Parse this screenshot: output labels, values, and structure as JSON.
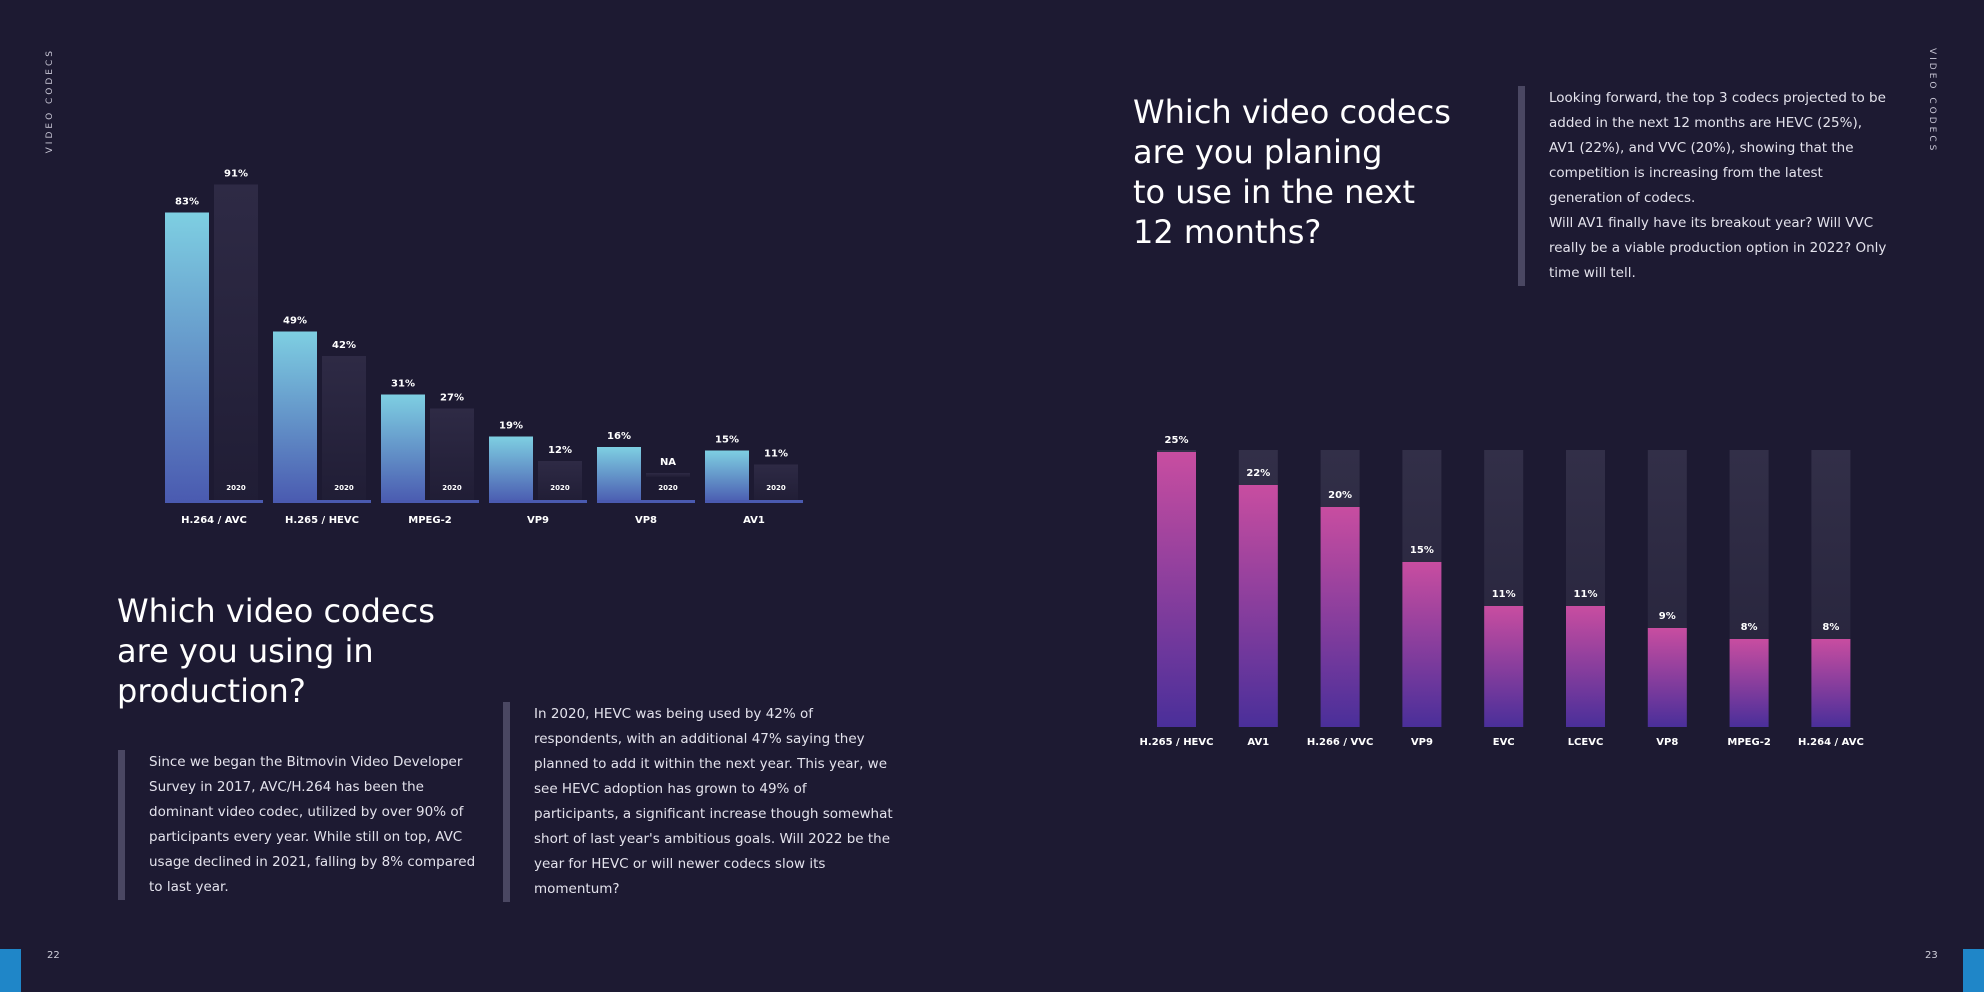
{
  "side_label": "VIDEO CODECS",
  "page_left": "22",
  "page_right": "23",
  "left": {
    "heading": "Which video codecs\nare you using in\nproduction?",
    "para1": "Since we began the Bitmovin Video Developer Survey in 2017, AVC/H.264 has been the dominant video codec, utilized by over 90% of participants every year. While still on top, AVC usage declined in 2021, falling by 8% compared to last year.",
    "para2": "In 2020, HEVC was being used by 42% of respondents, with an additional 47% saying they planned to add it within the next year. This year, we see HEVC adoption has grown to 49% of participants, a significant increase though somewhat short of last year's ambitious goals. Will 2022 be the year for HEVC or will newer codecs slow its momentum?"
  },
  "right": {
    "heading": "Which video codecs\nare you planing\nto use in the next\n12 months?",
    "para": "Looking forward, the top 3 codecs projected to be added in the next 12 months are HEVC (25%), AV1 (22%), and VVC (20%), showing that the competition is increasing from the latest generation of codecs.\nWill AV1 finally have its breakout year? Will VVC really be a viable production option in 2022? Only time will tell."
  },
  "colors": {
    "background": "#1d1a32",
    "current_top": "#7ecfe2",
    "current_bottom": "#4a5ab0",
    "prior_bar": "#2e2a45",
    "plan_top": "#c84da0",
    "plan_bottom": "#4a2f9a",
    "track": "#2e2b43",
    "accent": "#1f86c8"
  },
  "chart_data": [
    {
      "type": "bar",
      "categories": [
        "H.264 / AVC",
        "H.265 / HEVC",
        "MPEG-2",
        "VP9",
        "VP8",
        "AV1"
      ],
      "series": [
        {
          "values": [
            83,
            49,
            31,
            19,
            16,
            15
          ],
          "labels": [
            "83%",
            "49%",
            "31%",
            "19%",
            "16%",
            "15%"
          ]
        },
        {
          "name": "2020",
          "values": [
            91,
            42,
            27,
            12,
            null,
            11
          ],
          "labels": [
            "91%",
            "42%",
            "27%",
            "12%",
            "NA",
            "11%"
          ]
        }
      ],
      "ylim": [
        0,
        100
      ]
    },
    {
      "type": "bar",
      "categories": [
        "H.265 / HEVC",
        "AV1",
        "H.266 / VVC",
        "VP9",
        "EVC",
        "LCEVC",
        "VP8",
        "MPEG-2",
        "H.264 / AVC"
      ],
      "values": [
        25,
        22,
        20,
        15,
        11,
        11,
        9,
        8,
        8
      ],
      "labels": [
        "25%",
        "22%",
        "20%",
        "15%",
        "11%",
        "11%",
        "9%",
        "8%",
        "8%"
      ],
      "ylim": [
        0,
        25
      ]
    }
  ]
}
